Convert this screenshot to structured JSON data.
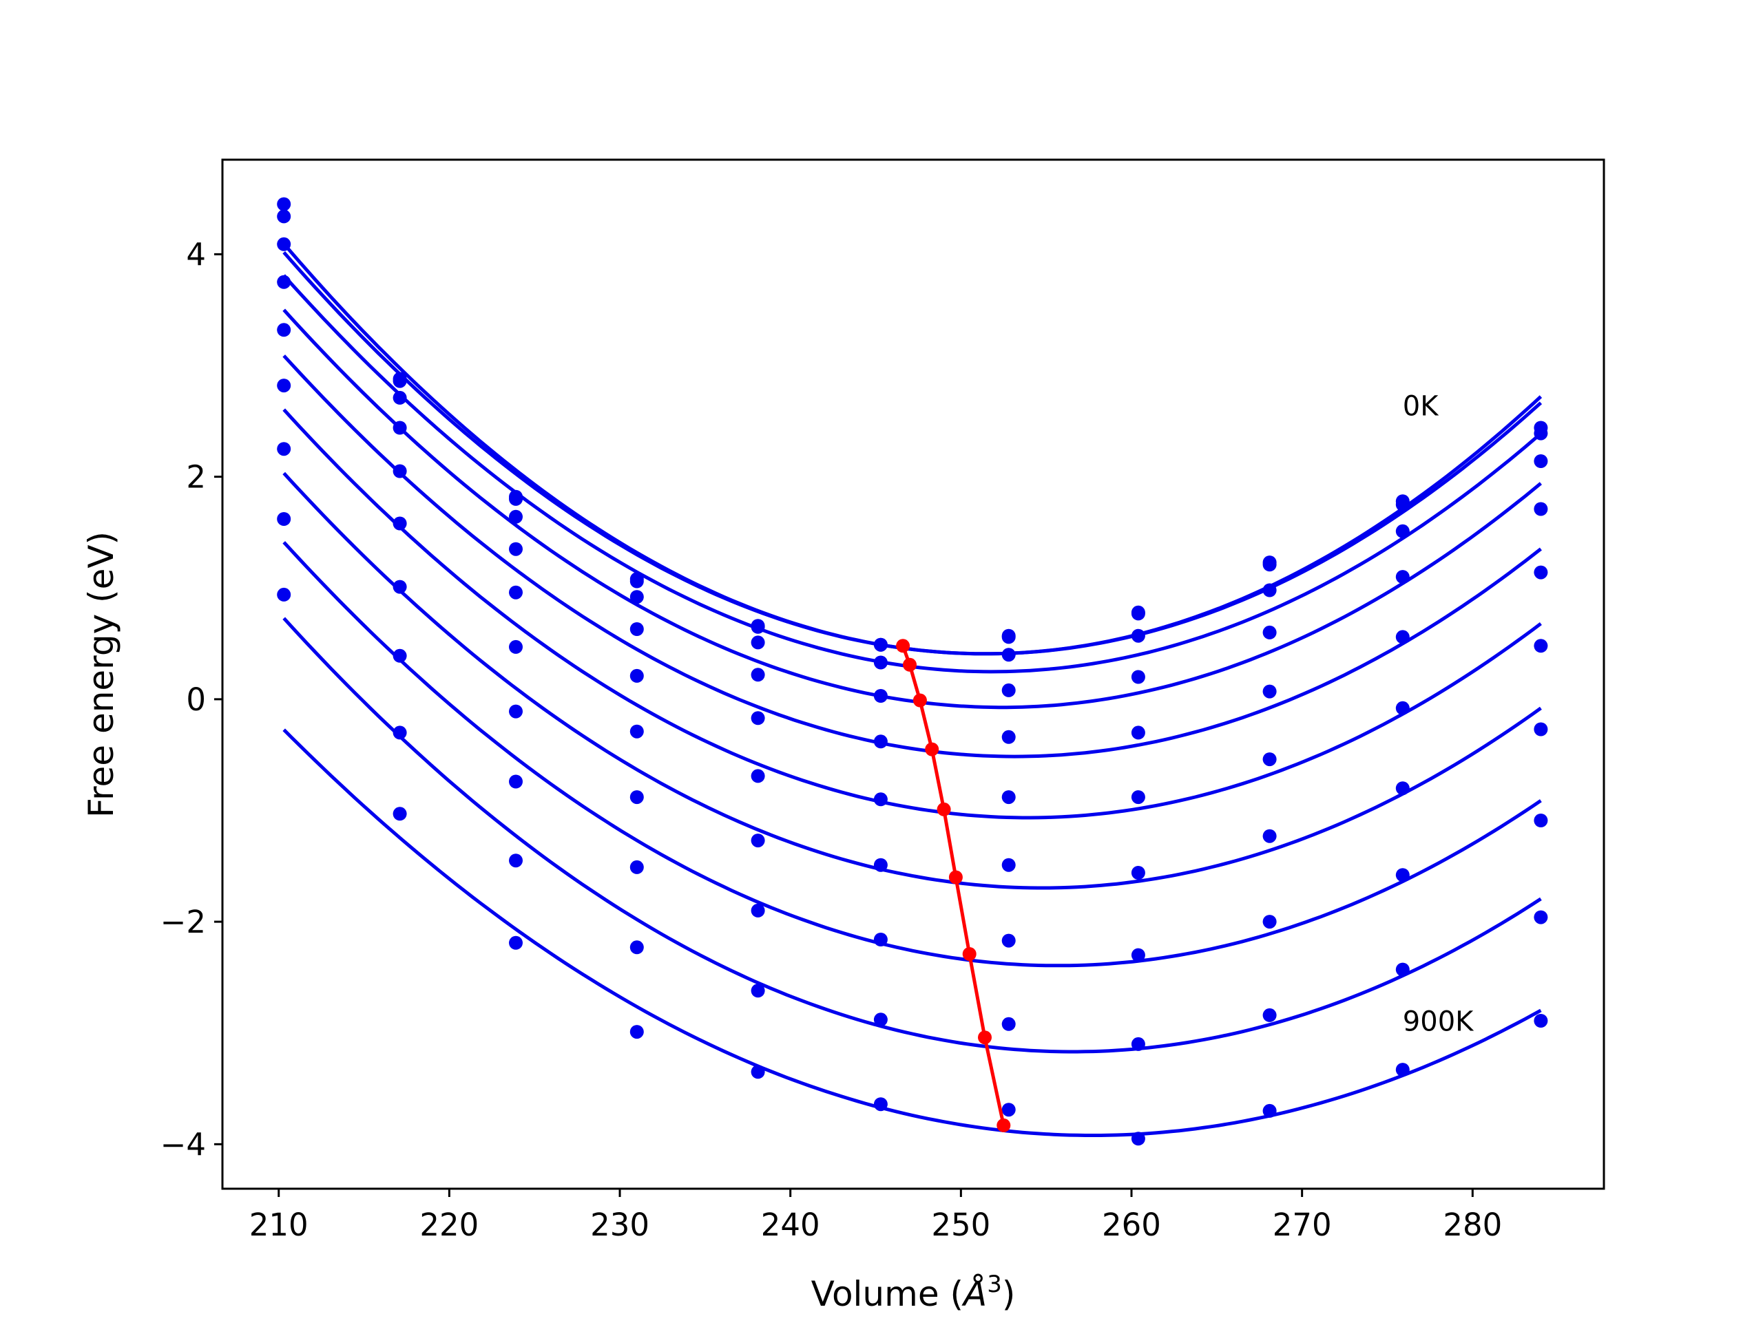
{
  "chart_data": {
    "type": "line",
    "title": "",
    "xlabel_main": "Volume (",
    "xlabel_unit": "Å",
    "xlabel_exp": "3",
    "xlabel_close": ")",
    "ylabel": "Free energy (eV)",
    "xlim": [
      206.7,
      287.7
    ],
    "ylim": [
      -4.4,
      4.85
    ],
    "xticks": [
      210,
      220,
      230,
      240,
      250,
      260,
      270,
      280
    ],
    "xtick_labels": [
      "210",
      "220",
      "230",
      "240",
      "250",
      "260",
      "270",
      "280"
    ],
    "yticks": [
      -4,
      -2,
      0,
      2,
      4
    ],
    "ytick_labels": [
      "−4",
      "−2",
      "0",
      "2",
      "4"
    ],
    "grid": false,
    "legend": "none",
    "colors": {
      "series": "#0000ee",
      "minimum_line": "#ff0000"
    },
    "annotations": [
      {
        "text": "0K",
        "x": 275.9,
        "y": 2.55
      },
      {
        "text": "900K",
        "x": 275.9,
        "y": -2.98
      }
    ],
    "x": [
      210.3,
      217.1,
      223.9,
      231.0,
      238.1,
      245.3,
      252.8,
      260.4,
      268.1,
      275.9,
      284.0
    ],
    "series": [
      {
        "points": [
          4.45,
          2.88,
          1.82,
          1.08,
          0.66,
          0.49,
          0.57,
          0.78,
          1.23,
          1.78,
          2.44
        ]
      },
      {
        "points": [
          4.34,
          2.86,
          1.8,
          1.06,
          0.65,
          0.49,
          0.56,
          0.77,
          1.21,
          1.75,
          2.39
        ]
      },
      {
        "points": [
          4.09,
          2.71,
          1.64,
          0.92,
          0.51,
          0.33,
          0.4,
          0.57,
          0.98,
          1.51,
          2.14
        ]
      },
      {
        "points": [
          3.75,
          2.44,
          1.35,
          0.63,
          0.22,
          0.03,
          0.08,
          0.2,
          0.6,
          1.1,
          1.71
        ]
      },
      {
        "points": [
          3.32,
          2.05,
          0.96,
          0.21,
          -0.17,
          -0.38,
          -0.34,
          -0.3,
          0.07,
          0.56,
          1.14
        ]
      },
      {
        "points": [
          2.82,
          1.58,
          0.47,
          -0.29,
          -0.69,
          -0.9,
          -0.88,
          -0.88,
          -0.54,
          -0.08,
          0.48
        ]
      },
      {
        "points": [
          2.25,
          1.01,
          -0.11,
          -0.88,
          -1.27,
          -1.49,
          -1.49,
          -1.56,
          -1.23,
          -0.8,
          -0.27
        ]
      },
      {
        "points": [
          1.62,
          0.39,
          -0.74,
          -1.51,
          -1.9,
          -2.16,
          -2.17,
          -2.3,
          -2.0,
          -1.58,
          -1.09
        ]
      },
      {
        "points": [
          0.94,
          -0.3,
          -1.45,
          -2.23,
          -2.62,
          -2.88,
          -2.92,
          -3.1,
          -2.84,
          -2.43,
          -1.96
        ]
      },
      {
        "points": [
          null,
          -1.03,
          -2.19,
          -2.99,
          -3.35,
          -3.64,
          -3.69,
          -3.95,
          -3.7,
          -3.33,
          -2.89
        ]
      }
    ],
    "minimum_line": {
      "x": [
        246.6,
        247.0,
        247.6,
        248.3,
        249.0,
        249.7,
        250.5,
        251.4,
        252.5
      ],
      "y": [
        0.48,
        0.31,
        -0.01,
        -0.45,
        -0.99,
        -1.6,
        -2.29,
        -3.04,
        -3.83
      ]
    }
  }
}
